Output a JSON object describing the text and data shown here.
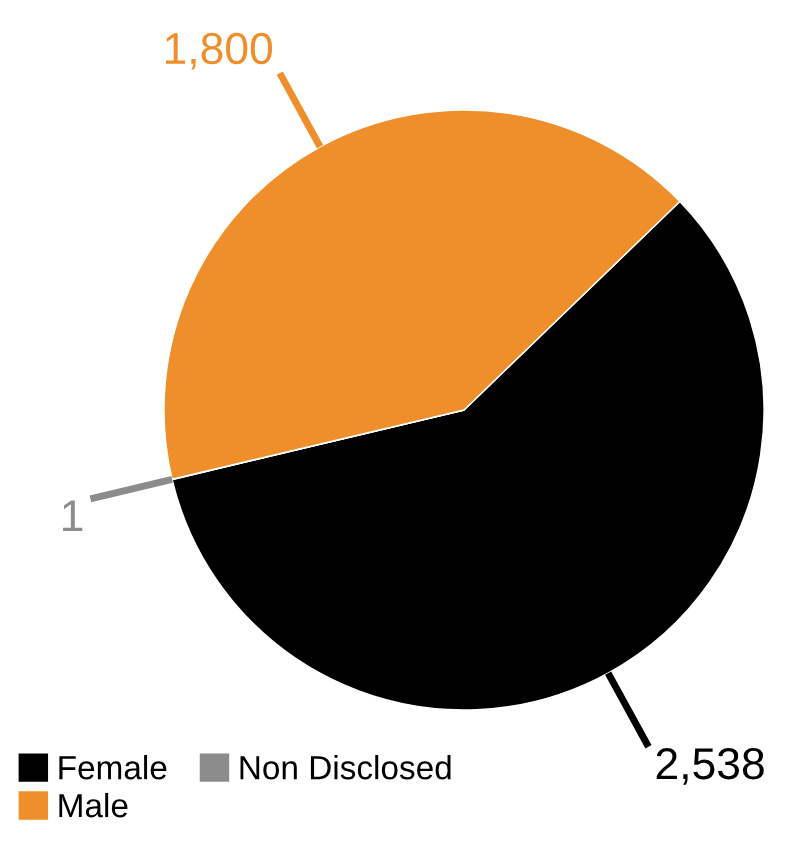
{
  "chart_data": {
    "type": "pie",
    "categories": [
      "Female",
      "Non Disclosed",
      "Male"
    ],
    "values": [
      2538,
      1,
      1800
    ],
    "colors": [
      "#000000",
      "#8c8c8c",
      "#ee8f2b"
    ],
    "value_labels": [
      "2,538",
      "1",
      "1,800"
    ],
    "legend": "bottom left"
  }
}
